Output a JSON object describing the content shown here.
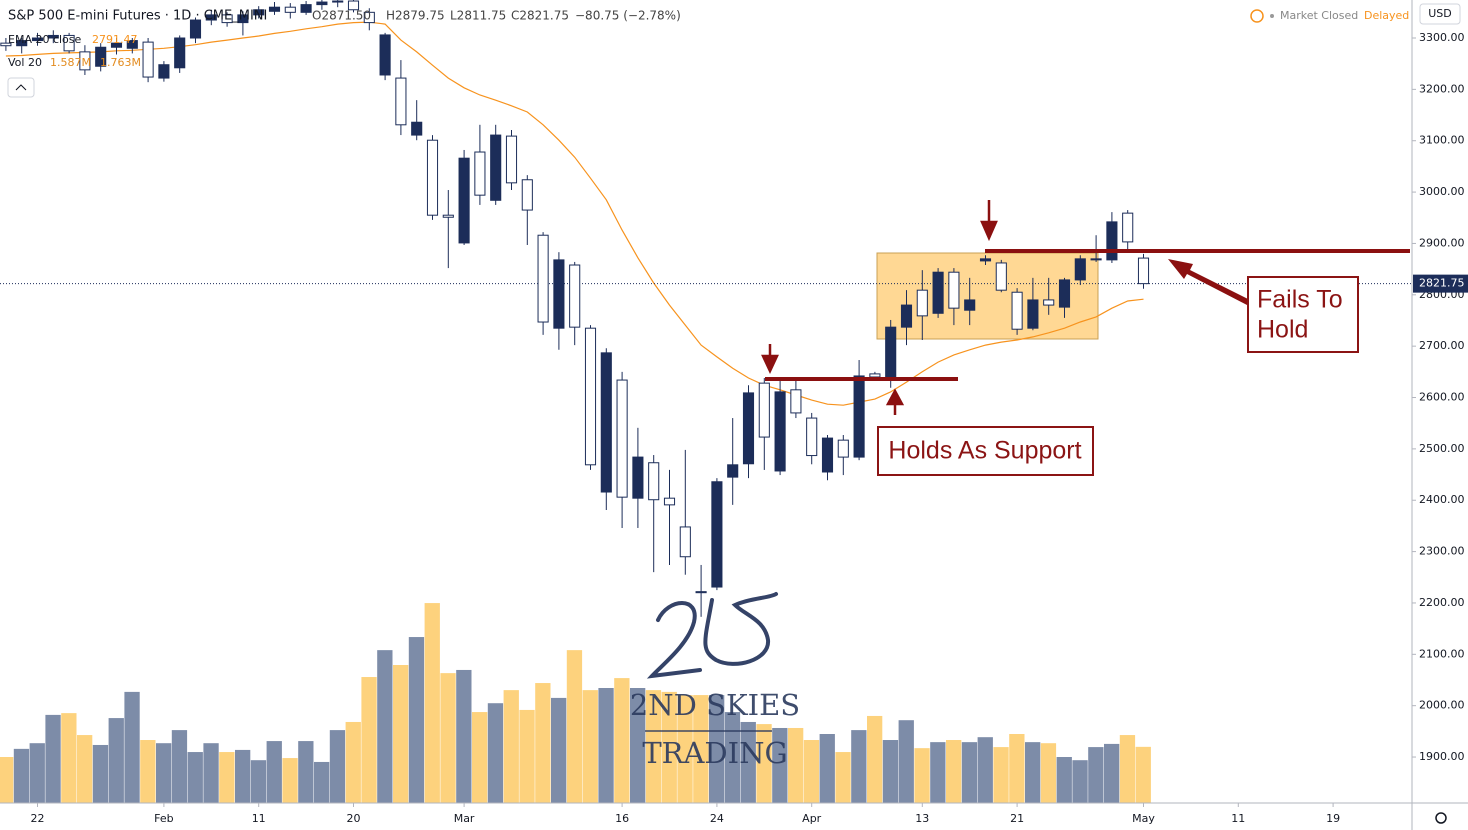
{
  "chart_data": {
    "type": "candlestick",
    "title": "S&P 500 E-mini Futures · 1D · CME_MINI",
    "ohlc_readout": [
      "O2871.50",
      "H2879.75",
      "L2811.75",
      "C2821.75",
      "−80.75 (−2.78%)"
    ],
    "market_status": "Market Closed",
    "feed": "Delayed",
    "currency": "USD",
    "categories": [
      null,
      null,
      "22",
      null,
      null,
      null,
      null,
      null,
      null,
      null,
      "Feb",
      null,
      null,
      null,
      null,
      null,
      "11",
      null,
      null,
      null,
      null,
      null,
      "20",
      null,
      null,
      null,
      null,
      null,
      null,
      "Mar",
      null,
      null,
      null,
      null,
      null,
      null,
      null,
      null,
      null,
      "16",
      null,
      null,
      null,
      null,
      null,
      "24",
      null,
      null,
      null,
      null,
      null,
      "Apr",
      null,
      null,
      null,
      null,
      null,
      null,
      "13",
      null,
      null,
      null,
      null,
      null,
      "21",
      null,
      null,
      null,
      null,
      null,
      null,
      null,
      "May",
      null,
      null,
      null,
      null,
      null,
      "11",
      null,
      null,
      null,
      null,
      null,
      "19",
      null,
      null,
      null,
      null
    ],
    "open": [
      3290,
      3285,
      3295,
      3300,
      3305,
      3273,
      3245,
      3282,
      3280,
      3292,
      3222,
      3242,
      3300,
      3335,
      3345,
      3330,
      3345,
      3352,
      3360,
      3350,
      3365,
      3370,
      3372,
      3350,
      3228,
      3222,
      3111,
      3101,
      2955,
      2901,
      3078,
      2984,
      3109,
      3024,
      2916,
      2735,
      2858,
      2735,
      2416,
      2634,
      2404,
      2473,
      2404,
      2348,
      2222,
      2231,
      2445,
      2471,
      2628,
      2457,
      2615,
      2560,
      2455,
      2517,
      2484,
      2646,
      2634,
      2737,
      2809,
      2764,
      2844,
      2770,
      2866,
      2862,
      2805,
      2735,
      2790,
      2776,
      2829,
      2868,
      2868,
      2959,
      2871.5,
      null,
      null,
      null,
      null,
      null,
      null,
      null,
      null,
      null,
      null,
      null,
      null,
      null,
      null,
      null,
      null
    ],
    "high": [
      3300,
      3300,
      3310,
      3315,
      3310,
      3286,
      3290,
      3300,
      3300,
      3300,
      3255,
      3305,
      3340,
      3355,
      3350,
      3352,
      3362,
      3370,
      3368,
      3372,
      3380,
      3385,
      3392,
      3358,
      3310,
      3257,
      3179,
      3111,
      3004,
      3082,
      3131,
      3131,
      3121,
      3033,
      2922,
      2883,
      2864,
      2741,
      2696,
      2650,
      2541,
      2488,
      2459,
      2498,
      2274,
      2443,
      2560,
      2624,
      2638,
      2634,
      2634,
      2570,
      2527,
      2527,
      2673,
      2650,
      2751,
      2809,
      2848,
      2852,
      2852,
      2833,
      2877,
      2868,
      2813,
      2833,
      2833,
      2833,
      2877,
      2916,
      2961,
      2965,
      2879.75,
      null,
      null,
      null,
      null,
      null,
      null,
      null,
      null,
      null,
      null,
      null,
      null,
      null,
      null,
      null,
      null
    ],
    "low": [
      3275,
      3270,
      3285,
      3290,
      3270,
      3228,
      3235,
      3268,
      3270,
      3214,
      3215,
      3232,
      3290,
      3325,
      3322,
      3305,
      3338,
      3345,
      3338,
      3345,
      3355,
      3360,
      3350,
      3315,
      3218,
      3111,
      3101,
      2946,
      2852,
      2897,
      2975,
      2975,
      3004,
      2897,
      2722,
      2693,
      2702,
      2459,
      2381,
      2346,
      2346,
      2260,
      2274,
      2255,
      2173,
      2225,
      2391,
      2443,
      2459,
      2449,
      2560,
      2470,
      2439,
      2449,
      2478,
      2634,
      2619,
      2702,
      2712,
      2755,
      2741,
      2741,
      2858,
      2805,
      2722,
      2731,
      2761,
      2755,
      2819,
      2864,
      2862,
      2887,
      2811.75,
      null,
      null,
      null,
      null,
      null,
      null,
      null,
      null,
      null,
      null,
      null,
      null,
      null,
      null,
      null,
      null
    ],
    "close": [
      3285,
      3295,
      3300,
      3305,
      3275,
      3238,
      3282,
      3290,
      3295,
      3224,
      3248,
      3300,
      3335,
      3345,
      3330,
      3345,
      3355,
      3360,
      3350,
      3365,
      3370,
      3372,
      3355,
      3330,
      3306,
      3131,
      3136,
      2955,
      2951,
      3066,
      2994,
      3111,
      3018,
      2965,
      2747,
      2868,
      2737,
      2469,
      2687,
      2406,
      2484,
      2401,
      2391,
      2290,
      2220,
      2436,
      2469,
      2609,
      2523,
      2611,
      2570,
      2487,
      2521,
      2484,
      2642,
      2640,
      2737,
      2780,
      2759,
      2844,
      2774,
      2790,
      2870,
      2809,
      2733,
      2790,
      2780,
      2829,
      2870,
      2870,
      2942,
      2903,
      2821.75,
      null,
      null,
      null,
      null,
      null,
      null,
      null,
      null,
      null,
      null,
      null,
      null,
      null,
      null,
      null,
      null
    ],
    "up_color": "#1c2d59",
    "down_color": "#ffffff",
    "last_price": 2821.75,
    "ema": {
      "name": "EMA 20 close",
      "color": "#f7931e",
      "values": [
        3265,
        3266,
        3268,
        3270,
        3271,
        3272,
        3273,
        3275,
        3276,
        3278,
        3280,
        3283,
        3287,
        3292,
        3296,
        3300,
        3304,
        3309,
        3313,
        3318,
        3322,
        3327,
        3330,
        3331,
        3327,
        3296,
        3273,
        3247,
        3222,
        3203,
        3189,
        3179,
        3168,
        3156,
        3131,
        3101,
        3068,
        3027,
        2985,
        2926,
        2872,
        2823,
        2780,
        2741,
        2702,
        2679,
        2657,
        2638,
        2624,
        2615,
        2605,
        2595,
        2587,
        2585,
        2591,
        2597,
        2611,
        2630,
        2650,
        2669,
        2683,
        2693,
        2702,
        2708,
        2712,
        2718,
        2726,
        2735,
        2747,
        2757,
        2774,
        2788,
        2791.47,
        null,
        null,
        null,
        null,
        null,
        null,
        null,
        null,
        null,
        null,
        null,
        null,
        null,
        null,
        null,
        null
      ]
    },
    "volume": {
      "name": "Vol 20",
      "readout": [
        "1.587M",
        "1.763M"
      ],
      "up_color": "#7d8ca8",
      "down_color": "#fdd27d",
      "ylim": [
        0,
        6.5
      ],
      "values": [
        1.3,
        1.53,
        1.69,
        2.49,
        2.54,
        1.92,
        1.64,
        2.4,
        3.14,
        1.78,
        1.69,
        2.06,
        1.44,
        1.69,
        1.44,
        1.5,
        1.21,
        1.75,
        1.27,
        1.75,
        1.16,
        2.06,
        2.29,
        3.56,
        4.32,
        3.9,
        4.69,
        5.65,
        3.67,
        3.76,
        2.57,
        2.82,
        3.19,
        2.63,
        3.39,
        2.97,
        4.32,
        3.19,
        3.25,
        3.53,
        3.25,
        3.19,
        3.14,
        3.05,
        3.05,
        3.05,
        2.57,
        2.29,
        2.23,
        2.12,
        2.12,
        1.78,
        1.95,
        1.44,
        2.06,
        2.46,
        1.78,
        2.34,
        1.55,
        1.72,
        1.78,
        1.72,
        1.86,
        1.58,
        1.95,
        1.72,
        1.69,
        1.3,
        1.21,
        1.58,
        1.67,
        1.92,
        1.587,
        null,
        null,
        null,
        null,
        null,
        null,
        null,
        null,
        null,
        null,
        null,
        null,
        null,
        null,
        null,
        null
      ]
    },
    "ylim": [
      1810.5,
      3374
    ],
    "yticks": [
      {
        "value": 1900,
        "label": "1900.00"
      },
      {
        "value": 2000,
        "label": "2000.00"
      },
      {
        "value": 2100,
        "label": "2100.00"
      },
      {
        "value": 2200,
        "label": "2200.00"
      },
      {
        "value": 2300,
        "label": "2300.00"
      },
      {
        "value": 2400,
        "label": "2400.00"
      },
      {
        "value": 2500,
        "label": "2500.00"
      },
      {
        "value": 2600,
        "label": "2600.00"
      },
      {
        "value": 2700,
        "label": "2700.00"
      },
      {
        "value": 2800,
        "label": "2800.00"
      },
      {
        "value": 2900,
        "label": "2900.00"
      },
      {
        "value": 3000,
        "label": "3000.00"
      },
      {
        "value": 3100,
        "label": "3100.00"
      },
      {
        "value": 3200,
        "label": "3200.00"
      },
      {
        "value": 3300,
        "label": "3300.00"
      }
    ],
    "grid": false,
    "annotations": {
      "support": "Holds As Support",
      "fail": [
        "Fails To",
        "Hold"
      ]
    },
    "watermark": {
      "line1": "2ND SKIES",
      "line2": "TRADING"
    }
  }
}
